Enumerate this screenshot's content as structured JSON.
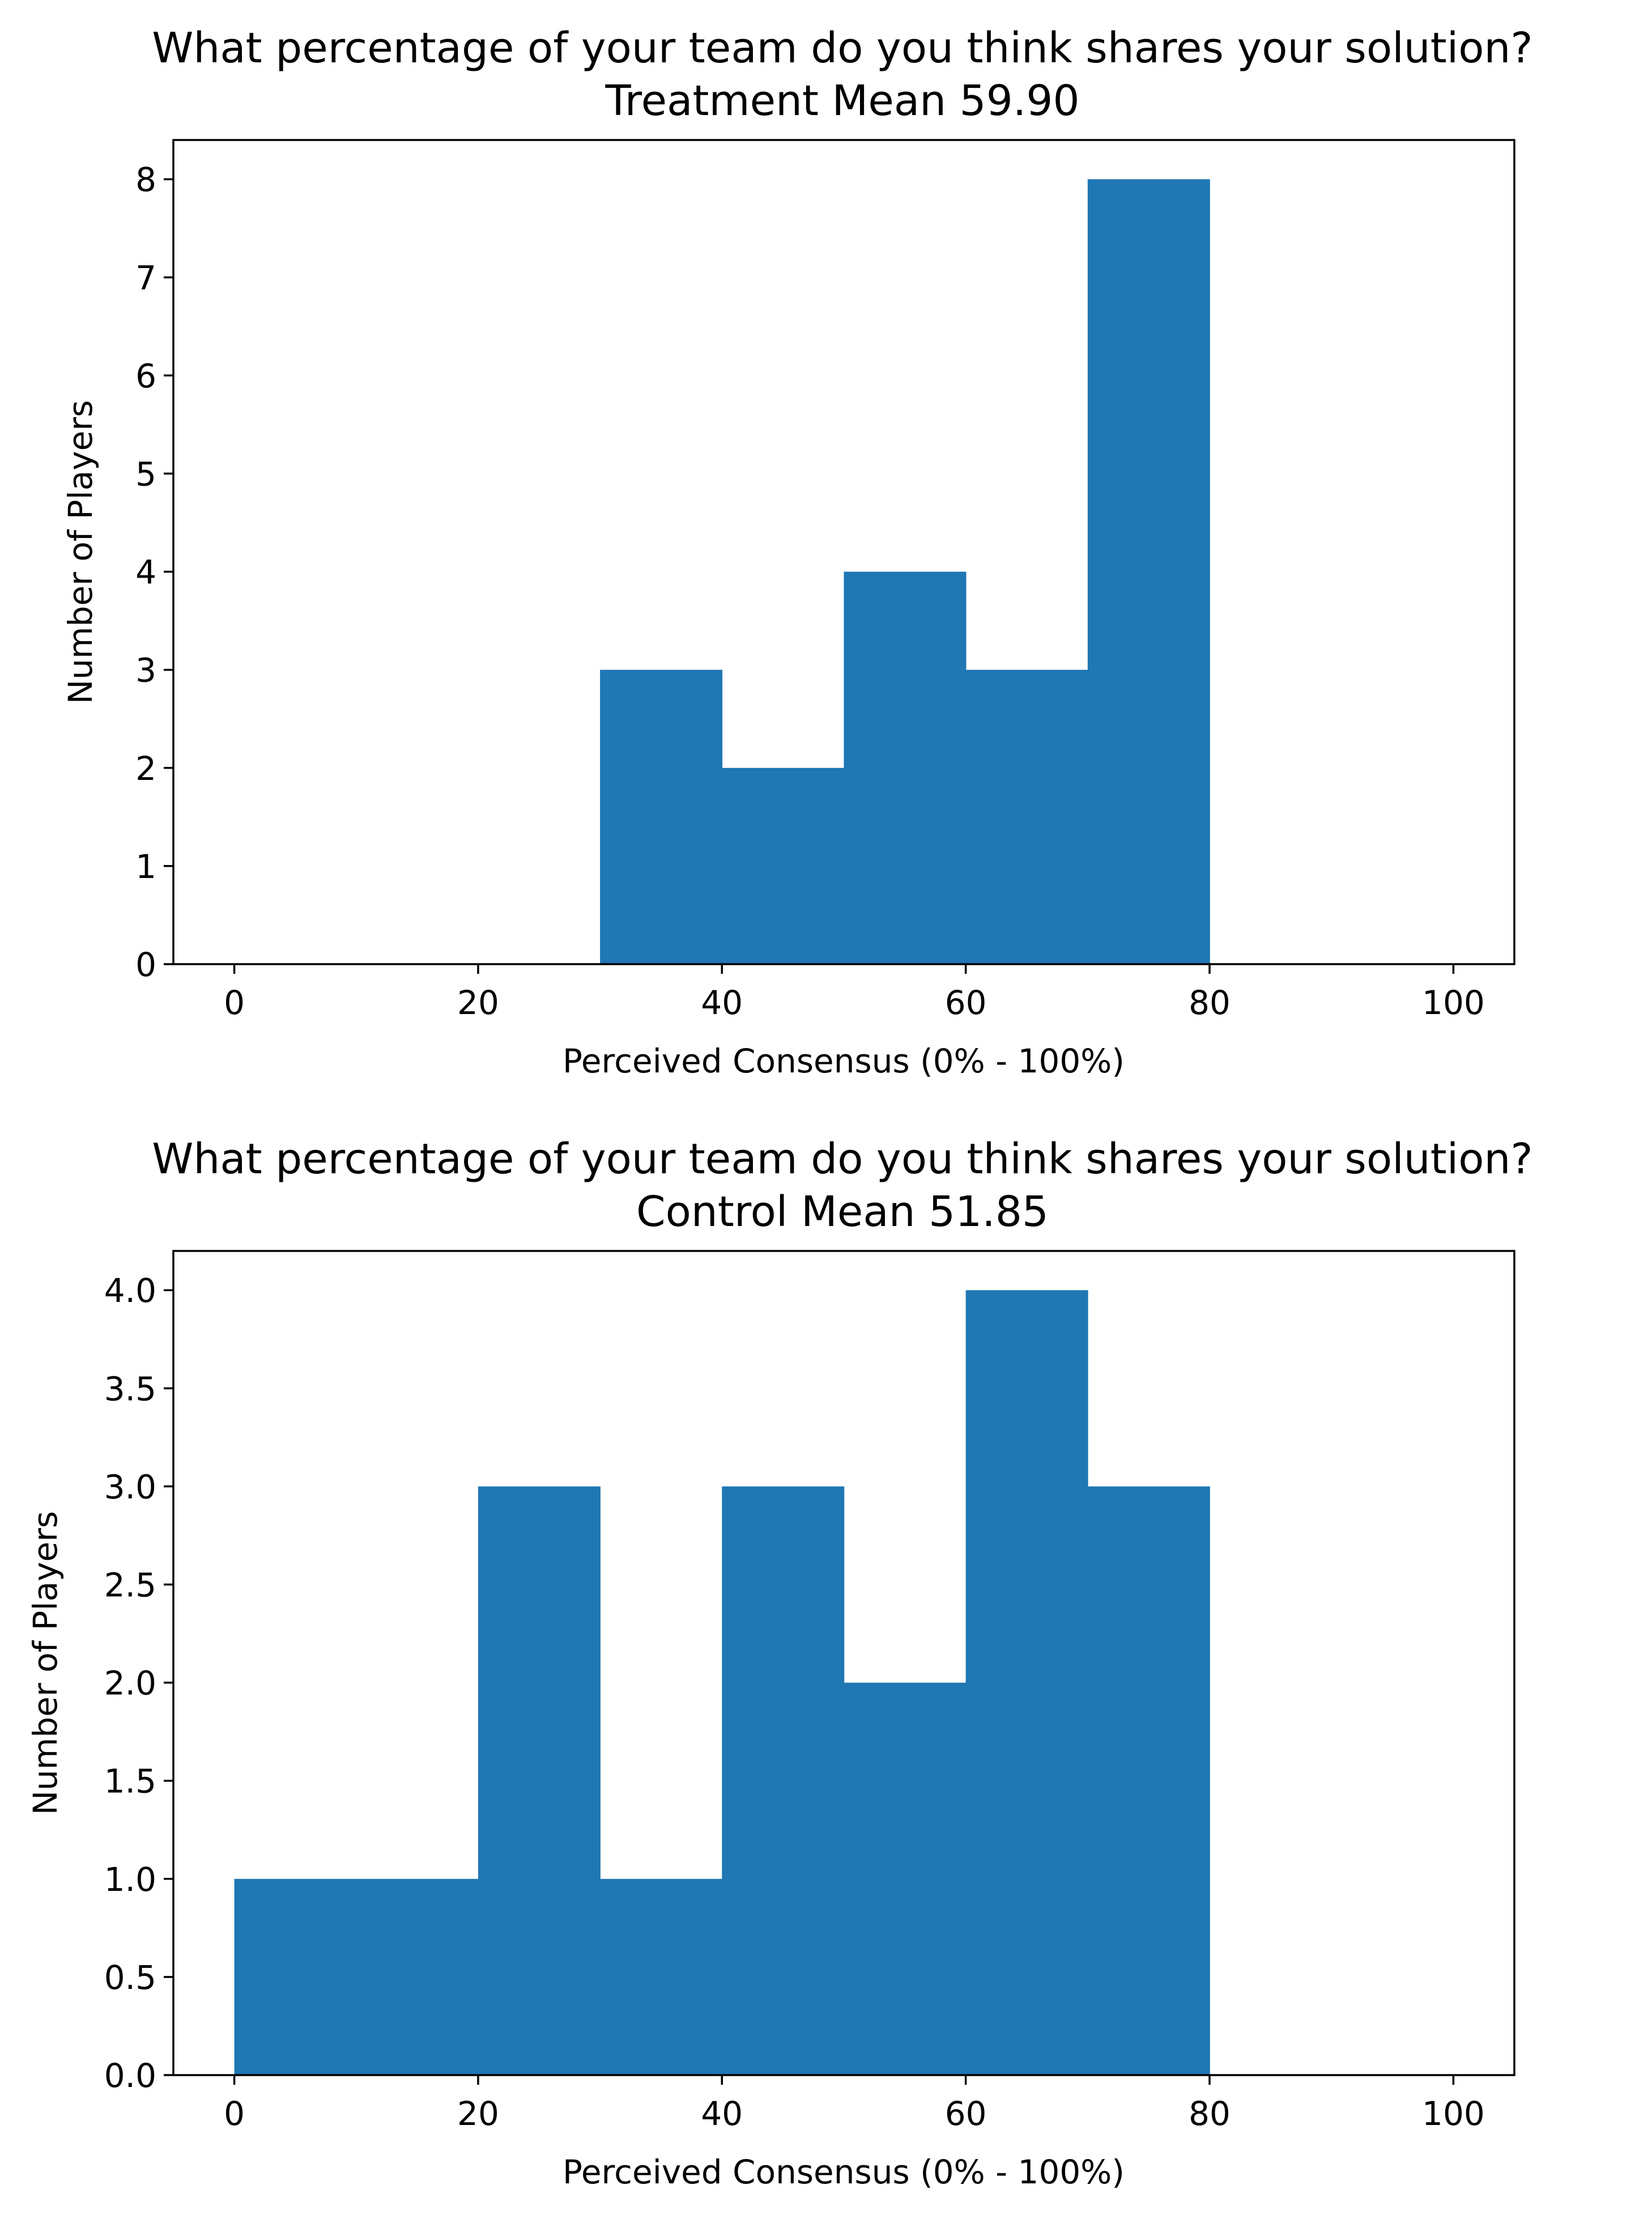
{
  "chart_data": [
    {
      "type": "bar",
      "subtype": "histogram",
      "title": "What percentage of your team do you think shares your solution?",
      "subtitle": "Treatment Mean 59.90",
      "xlabel": "Perceived Consensus (0% - 100%)",
      "ylabel": "Number of Players",
      "xlim": [
        -5,
        105
      ],
      "ylim": [
        0,
        8.4
      ],
      "xticks": [
        0,
        20,
        40,
        60,
        80,
        100
      ],
      "xtick_labels": [
        "0",
        "20",
        "40",
        "60",
        "80",
        "100"
      ],
      "yticks": [
        0,
        1,
        2,
        3,
        4,
        5,
        6,
        7,
        8
      ],
      "ytick_labels": [
        "0",
        "1",
        "2",
        "3",
        "4",
        "5",
        "6",
        "7",
        "8"
      ],
      "bin_edges": [
        0,
        10,
        20,
        30,
        40,
        50,
        60,
        70,
        80,
        90,
        100
      ],
      "values": [
        0,
        0,
        0,
        3,
        2,
        4,
        3,
        8,
        0,
        0
      ],
      "color": "#1f77b4",
      "grid": false,
      "legend": false
    },
    {
      "type": "bar",
      "subtype": "histogram",
      "title": "What percentage of your team do you think shares your solution?",
      "subtitle": "Control Mean 51.85",
      "xlabel": "Perceived Consensus (0% - 100%)",
      "ylabel": "Number of Players",
      "xlim": [
        -5,
        105
      ],
      "ylim": [
        0,
        4.2
      ],
      "xticks": [
        0,
        20,
        40,
        60,
        80,
        100
      ],
      "xtick_labels": [
        "0",
        "20",
        "40",
        "60",
        "80",
        "100"
      ],
      "yticks": [
        0,
        0.5,
        1,
        1.5,
        2,
        2.5,
        3,
        3.5,
        4
      ],
      "ytick_labels": [
        "0.0",
        "0.5",
        "1.0",
        "1.5",
        "2.0",
        "2.5",
        "3.0",
        "3.5",
        "4.0"
      ],
      "bin_edges": [
        0,
        10,
        20,
        30,
        40,
        50,
        60,
        70,
        80,
        90,
        100
      ],
      "values": [
        1,
        1,
        3,
        1,
        3,
        2,
        4,
        3,
        0,
        0
      ],
      "color": "#1f77b4",
      "grid": false,
      "legend": false
    }
  ]
}
